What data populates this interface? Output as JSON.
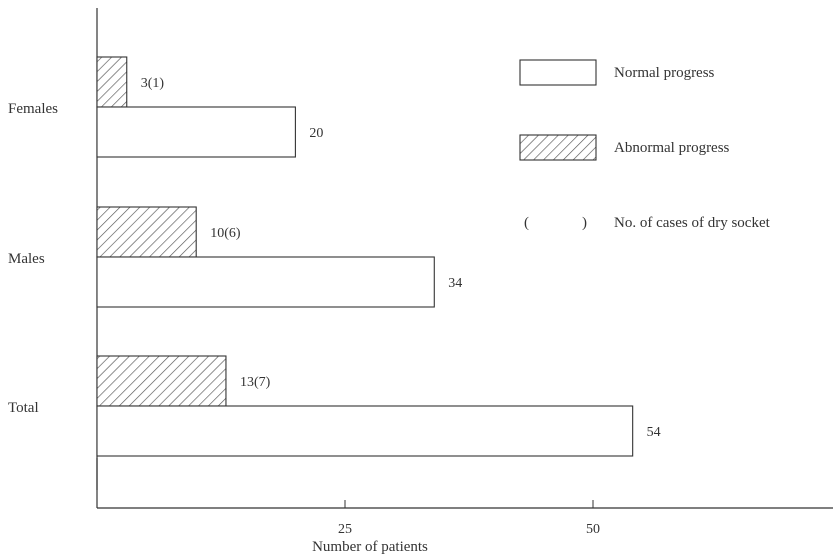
{
  "chart_data": {
    "type": "bar",
    "orientation": "horizontal",
    "xlabel": "Number of patients",
    "categories": [
      "Females",
      "Males",
      "Total"
    ],
    "series": [
      {
        "name": "Abnormal progress",
        "pattern": "hatched",
        "values": [
          3,
          10,
          13
        ],
        "labels": [
          "3(1)",
          "10(6)",
          "13(7)"
        ]
      },
      {
        "name": "Normal progress",
        "pattern": "plain",
        "values": [
          20,
          34,
          54
        ],
        "labels": [
          "20",
          "34",
          "54"
        ]
      }
    ],
    "xticks": [
      25,
      50
    ],
    "xlim": [
      0,
      74
    ],
    "legend": {
      "placement": "top-right",
      "items": [
        {
          "label": "Normal progress",
          "pattern": "plain"
        },
        {
          "label": "Abnormal progress",
          "pattern": "hatched"
        },
        {
          "label": "No. of cases of dry socket",
          "symbol": "(      )"
        }
      ]
    },
    "colors": {
      "stroke": "#333333",
      "fill": "#ffffff",
      "hatch": "#555555"
    }
  }
}
